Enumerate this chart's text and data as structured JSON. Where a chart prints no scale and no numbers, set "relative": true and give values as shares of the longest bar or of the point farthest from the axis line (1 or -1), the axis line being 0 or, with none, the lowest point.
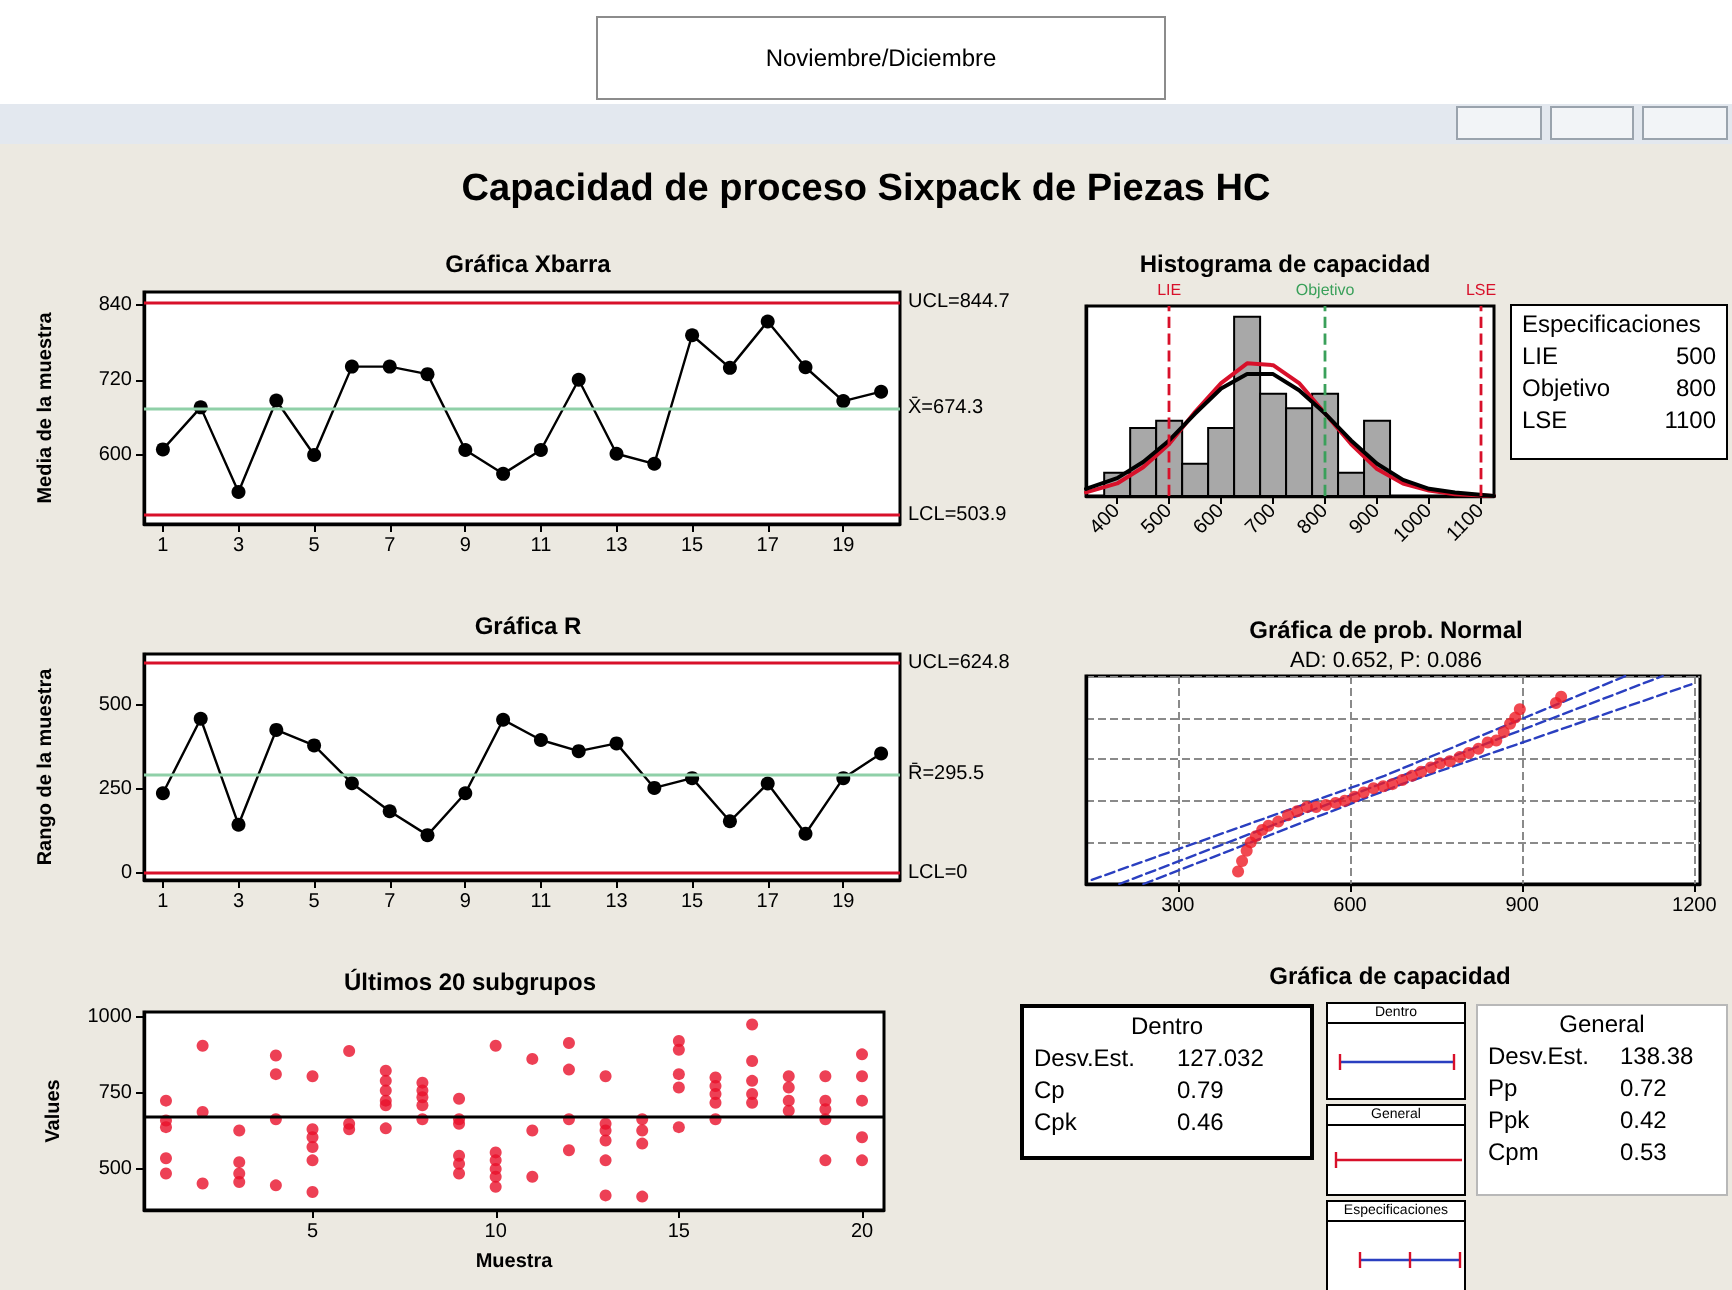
{
  "chart_data": [
    {
      "type": "other",
      "title": "Capacidad de proceso Sixpack de Piezas HC",
      "annotations": [
        "Noviembre/Diciembre"
      ]
    },
    {
      "type": "line",
      "title": "Gráfica Xbarra",
      "ylabel": "Media de la muestra",
      "x": [
        1,
        2,
        3,
        4,
        5,
        6,
        7,
        8,
        9,
        10,
        11,
        12,
        13,
        14,
        15,
        16,
        17,
        18,
        19,
        20
      ],
      "values": [
        609,
        676,
        541,
        687,
        600,
        741,
        741,
        729,
        608,
        570,
        608,
        720,
        602,
        586,
        791,
        739,
        813,
        740,
        686,
        701
      ],
      "color": "#000000",
      "marker": "circle",
      "xlim": [
        0.5,
        20.5
      ],
      "xticks": [
        1,
        3,
        5,
        7,
        9,
        11,
        13,
        15,
        17,
        19
      ],
      "ylim": [
        490,
        860
      ],
      "yticks": [
        600,
        720,
        840
      ],
      "ref_lines": [
        {
          "axis": "y",
          "value": 844.7,
          "label": "UCL=844.7",
          "color": "#d8102a"
        },
        {
          "axis": "y",
          "value": 674.3,
          "label": "X̄=674.3",
          "color": "#8fd0a8"
        },
        {
          "axis": "y",
          "value": 503.9,
          "label": "LCL=503.9",
          "color": "#d8102a"
        }
      ]
    },
    {
      "type": "histogram",
      "title": "Histograma de capacidad",
      "relative": true,
      "bins": [
        375,
        425,
        475,
        525,
        575,
        625,
        675,
        725,
        775,
        825,
        875,
        925
      ],
      "xlim": [
        340,
        1125
      ],
      "xticks": [
        400,
        500,
        600,
        700,
        800,
        900,
        1000,
        1100
      ],
      "tick_labels": "x",
      "series": [
        {
          "color": "#a8a8a8",
          "values": [
            0.13,
            0.38,
            0.42,
            0.18,
            0.38,
            1,
            0.57,
            0.49,
            0.57,
            0.13,
            0.42
          ]
        },
        {
          "type": "line",
          "color": "#d8102a",
          "x": [
            340,
            400,
            450,
            500,
            550,
            600,
            650,
            700,
            750,
            800,
            850,
            900,
            950,
            1000,
            1050,
            1125
          ],
          "values": [
            0.02,
            0.07,
            0.16,
            0.29,
            0.47,
            0.63,
            0.74,
            0.73,
            0.63,
            0.46,
            0.29,
            0.15,
            0.07,
            0.03,
            0.01,
            0
          ]
        },
        {
          "type": "line",
          "color": "#000000",
          "x": [
            340,
            400,
            450,
            500,
            550,
            600,
            650,
            700,
            750,
            800,
            850,
            900,
            950,
            1000,
            1050,
            1125
          ],
          "values": [
            0.04,
            0.1,
            0.19,
            0.31,
            0.46,
            0.6,
            0.68,
            0.68,
            0.59,
            0.46,
            0.31,
            0.18,
            0.09,
            0.04,
            0.02,
            0
          ]
        }
      ],
      "ref_lines": [
        {
          "axis": "x",
          "value": 500,
          "label": "LIE",
          "color": "#d8102a",
          "line_style": "dashed"
        },
        {
          "axis": "x",
          "value": 800,
          "label": "Objetivo",
          "color": "#3aa05a",
          "line_style": "dashed"
        },
        {
          "axis": "x",
          "value": 1100,
          "label": "LSE",
          "color": "#d8102a",
          "line_style": "dashed"
        }
      ]
    },
    {
      "type": "other",
      "title": "Especificaciones",
      "categories": [
        "LIE",
        "Objetivo",
        "LSE"
      ],
      "values": [
        500,
        800,
        1100
      ],
      "data_labels": true
    },
    {
      "type": "line",
      "title": "Gráfica R",
      "ylabel": "Rango de la muestra",
      "x": [
        1,
        2,
        3,
        4,
        5,
        6,
        7,
        8,
        9,
        10,
        11,
        12,
        13,
        14,
        15,
        16,
        17,
        18,
        19,
        20
      ],
      "values": [
        237,
        458,
        144,
        425,
        379,
        267,
        184,
        113,
        237,
        455,
        395,
        362,
        385,
        253,
        282,
        154,
        266,
        117,
        282,
        355
      ],
      "color": "#000000",
      "marker": "circle",
      "xlim": [
        0.5,
        20.5
      ],
      "xticks": [
        1,
        3,
        5,
        7,
        9,
        11,
        13,
        15,
        17,
        19
      ],
      "ylim": [
        -20,
        650
      ],
      "yticks": [
        0,
        250,
        500
      ],
      "ref_lines": [
        {
          "axis": "y",
          "value": 624.8,
          "label": "UCL=624.8",
          "color": "#d8102a"
        },
        {
          "axis": "y",
          "value": 295.5,
          "label": "R̄=295.5",
          "color": "#8fd0a8"
        },
        {
          "axis": "y",
          "value": 0,
          "label": "LCL=0",
          "color": "#d8102a"
        }
      ]
    },
    {
      "type": "scatter",
      "title": "Gráfica de prob. Normal",
      "subtitle": "AD: 0.652, P: 0.086",
      "relative": true,
      "xlim": [
        140,
        1210
      ],
      "xticks": [
        300,
        600,
        900,
        1200
      ],
      "tick_labels": "x",
      "grid": true,
      "series": [
        {
          "color": "#ee1c25",
          "marker": "circle",
          "x": [
            405,
            412,
            420,
            427,
            436,
            447,
            458,
            475,
            492,
            508,
            525,
            541,
            558,
            575,
            591,
            608,
            624,
            641,
            658,
            674,
            691,
            708,
            724,
            741,
            757,
            774,
            791,
            807,
            824,
            840,
            855,
            868,
            879,
            888,
            896,
            959,
            968
          ],
          "values": [
            0.06,
            0.11,
            0.16,
            0.2,
            0.23,
            0.26,
            0.28,
            0.3,
            0.33,
            0.35,
            0.37,
            0.37,
            0.38,
            0.39,
            0.4,
            0.42,
            0.44,
            0.46,
            0.47,
            0.48,
            0.5,
            0.52,
            0.54,
            0.56,
            0.58,
            0.59,
            0.61,
            0.63,
            0.65,
            0.68,
            0.69,
            0.73,
            0.77,
            0.8,
            0.84,
            0.87,
            0.9
          ]
        },
        {
          "type": "line",
          "color": "#2a3fc0",
          "line_style": "dashed",
          "x": [
            198,
            1145
          ],
          "values": [
            0,
            1
          ]
        },
        {
          "type": "line",
          "color": "#2a3fc0",
          "line_style": "dashed",
          "x": [
            150,
            660,
            1080
          ],
          "values": [
            0.02,
            0.52,
            1
          ]
        },
        {
          "type": "line",
          "color": "#2a3fc0",
          "line_style": "dashed",
          "x": [
            240,
            690,
            1195
          ],
          "values": [
            0,
            0.48,
            0.96
          ]
        }
      ]
    },
    {
      "type": "scatter",
      "title": "Últimos 20 subgrupos",
      "xlabel": "Muestra",
      "ylabel": "Values",
      "color": "#e8102a",
      "marker": "circle",
      "xlim": [
        0.4,
        20.6
      ],
      "xticks": [
        5,
        10,
        15,
        20
      ],
      "ylim": [
        365,
        1015
      ],
      "yticks": [
        500,
        750,
        1000
      ],
      "x": [
        1,
        1,
        1,
        1,
        1,
        2,
        2,
        2,
        3,
        3,
        3,
        3,
        4,
        4,
        4,
        4,
        5,
        5,
        5,
        5,
        5,
        5,
        6,
        6,
        6,
        7,
        7,
        7,
        7,
        7,
        7,
        8,
        8,
        8,
        8,
        8,
        9,
        9,
        9,
        9,
        9,
        9,
        10,
        10,
        10,
        10,
        10,
        10,
        11,
        11,
        11,
        12,
        12,
        12,
        12,
        13,
        13,
        13,
        13,
        13,
        13,
        14,
        14,
        14,
        14,
        15,
        15,
        15,
        15,
        15,
        16,
        16,
        16,
        16,
        16,
        17,
        17,
        17,
        17,
        17,
        18,
        18,
        18,
        18,
        19,
        19,
        19,
        19,
        19,
        20,
        20,
        20,
        20,
        20
      ],
      "values": [
        724,
        659,
        637,
        535,
        485,
        904,
        687,
        452,
        626,
        522,
        485,
        457,
        872,
        811,
        663,
        446,
        804,
        630,
        604,
        572,
        528,
        424,
        887,
        648,
        630,
        822,
        789,
        757,
        724,
        709,
        633,
        783,
        757,
        735,
        709,
        663,
        730,
        663,
        648,
        543,
        517,
        485,
        904,
        554,
        528,
        500,
        474,
        441,
        861,
        626,
        474,
        913,
        826,
        663,
        561,
        804,
        648,
        626,
        593,
        528,
        413,
        663,
        626,
        583,
        409,
        920,
        891,
        811,
        767,
        637,
        800,
        772,
        746,
        717,
        663,
        974,
        854,
        789,
        746,
        717,
        804,
        767,
        724,
        691,
        804,
        724,
        696,
        663,
        528,
        876,
        804,
        724,
        604,
        528
      ],
      "ref_lines": [
        {
          "axis": "y",
          "value": 674.3,
          "color": "#000000"
        }
      ]
    },
    {
      "type": "other",
      "title": "Gráfica de capacidad",
      "categories": [
        "Dentro",
        "General",
        "Especificaciones"
      ]
    },
    {
      "type": "other",
      "title": "Dentro",
      "categories": [
        "Desv.Est.",
        "Cp",
        "Cpk"
      ],
      "values": [
        127.032,
        0.79,
        0.46
      ],
      "data_labels": true
    },
    {
      "type": "other",
      "title": "General",
      "categories": [
        "Desv.Est.",
        "Pp",
        "Ppk",
        "Cpm"
      ],
      "values": [
        138.38,
        0.72,
        0.42,
        0.53
      ],
      "data_labels": true
    }
  ]
}
